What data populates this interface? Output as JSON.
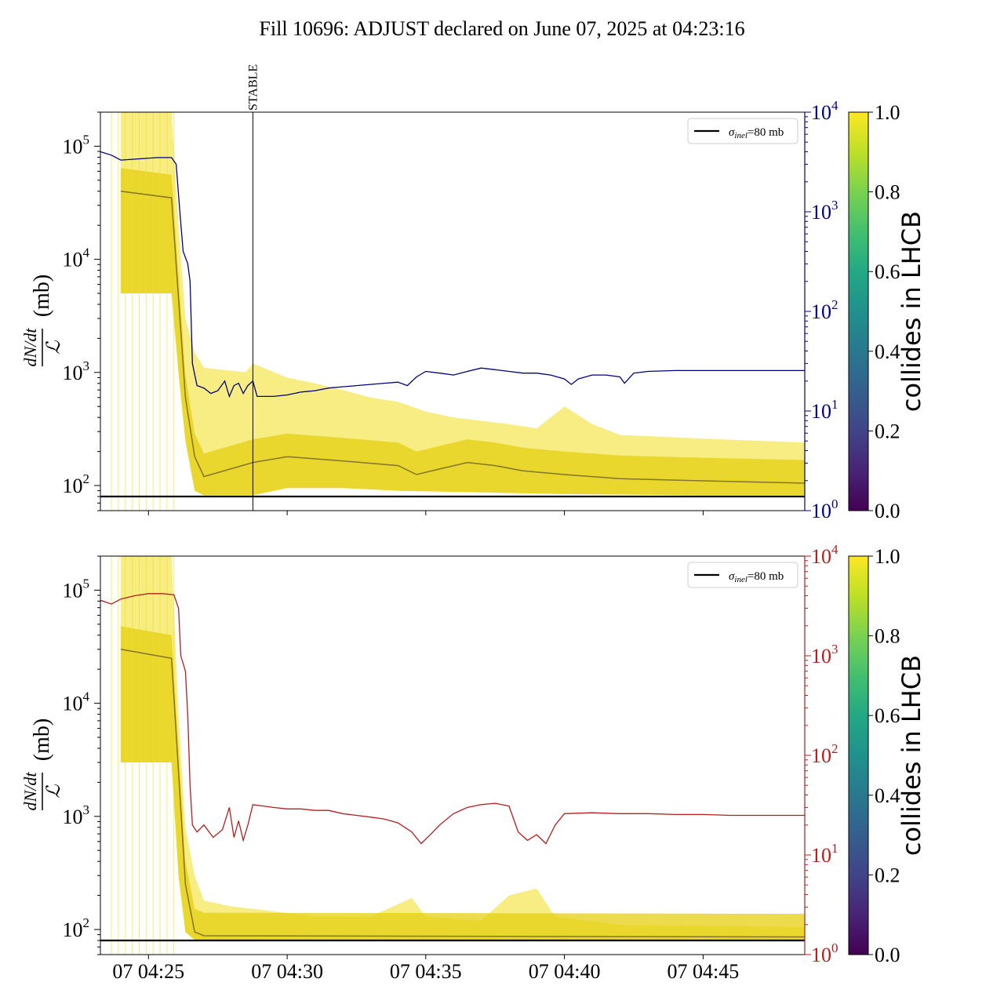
{
  "figure": {
    "title": "Fill 10696: ADJUST declared on June 07, 2025 at 04:23:16"
  },
  "colors": {
    "top_secondary": "#000080",
    "bottom_secondary": "#b21f1f",
    "reference_line": "#000000",
    "bunch_yellow": "#f0de1c",
    "bunch_dark": "#5a4a28"
  },
  "chart_data": [
    {
      "type": "line",
      "panel": "top",
      "ylabel_fraction_num": "dN/dt",
      "ylabel_fraction_den": "ℒ",
      "ylabel_unit": "(mb)",
      "y_scale": "log",
      "ylim": [
        60,
        200000
      ],
      "y_ticks": [
        {
          "value": 100,
          "label": "10",
          "exp": "2"
        },
        {
          "value": 1000,
          "label": "10",
          "exp": "3"
        },
        {
          "value": 10000,
          "label": "10",
          "exp": "4"
        },
        {
          "value": 100000,
          "label": "10",
          "exp": "5"
        }
      ],
      "xlim": [
        "04:23:16",
        "04:48:40"
      ],
      "annotation": {
        "label": "STABLE",
        "x": "04:28:46"
      },
      "legend": {
        "position": "top-right",
        "entries": [
          {
            "sym": "σ",
            "sub": "inel",
            "text": "=80 mb"
          }
        ]
      },
      "reference_line": {
        "value": 80
      },
      "secondary_axis": {
        "scale": "log",
        "ylim": [
          1,
          10000
        ],
        "ticks": [
          {
            "value": 1,
            "label": "10",
            "exp": "0"
          },
          {
            "value": 10,
            "label": "10",
            "exp": "1"
          },
          {
            "value": 100,
            "label": "10",
            "exp": "2"
          },
          {
            "value": 1000,
            "label": "10",
            "exp": "3"
          },
          {
            "value": 10000,
            "label": "10",
            "exp": "4"
          }
        ],
        "series": [
          [
            "04:23:16",
            4000
          ],
          [
            "04:23:40",
            3700
          ],
          [
            "04:24:00",
            3300
          ],
          [
            "04:24:40",
            3400
          ],
          [
            "04:25:20",
            3500
          ],
          [
            "04:25:50",
            3500
          ],
          [
            "04:26:00",
            3000
          ],
          [
            "04:26:08",
            1000
          ],
          [
            "04:26:15",
            400
          ],
          [
            "04:26:25",
            300
          ],
          [
            "04:26:30",
            200
          ],
          [
            "04:26:35",
            30
          ],
          [
            "04:26:45",
            18
          ],
          [
            "04:27:00",
            17
          ],
          [
            "04:27:15",
            15
          ],
          [
            "04:27:30",
            16
          ],
          [
            "04:27:45",
            20
          ],
          [
            "04:27:55",
            14
          ],
          [
            "04:28:05",
            18
          ],
          [
            "04:28:15",
            19
          ],
          [
            "04:28:25",
            15
          ],
          [
            "04:28:35",
            18
          ],
          [
            "04:28:46",
            20
          ],
          [
            "04:28:55",
            14
          ],
          [
            "04:29:30",
            14
          ],
          [
            "04:30:00",
            14.5
          ],
          [
            "04:30:30",
            15.5
          ],
          [
            "04:31:00",
            16
          ],
          [
            "04:31:30",
            17
          ],
          [
            "04:32:00",
            17.5
          ],
          [
            "04:32:30",
            18
          ],
          [
            "04:33:00",
            18.5
          ],
          [
            "04:33:30",
            19
          ],
          [
            "04:34:00",
            19.5
          ],
          [
            "04:34:20",
            18
          ],
          [
            "04:34:40",
            22
          ],
          [
            "04:35:00",
            25
          ],
          [
            "04:35:30",
            24
          ],
          [
            "04:36:00",
            23
          ],
          [
            "04:36:30",
            25
          ],
          [
            "04:37:00",
            27
          ],
          [
            "04:37:30",
            26
          ],
          [
            "04:38:00",
            25
          ],
          [
            "04:38:30",
            24
          ],
          [
            "04:39:00",
            24
          ],
          [
            "04:39:30",
            23
          ],
          [
            "04:40:00",
            21
          ],
          [
            "04:40:15",
            18.5
          ],
          [
            "04:40:30",
            21
          ],
          [
            "04:41:00",
            23
          ],
          [
            "04:41:30",
            23
          ],
          [
            "04:42:00",
            22
          ],
          [
            "04:42:10",
            19
          ],
          [
            "04:42:30",
            24
          ],
          [
            "04:43:00",
            25
          ],
          [
            "04:44:00",
            25.5
          ],
          [
            "04:45:00",
            25.5
          ],
          [
            "04:46:00",
            25.5
          ],
          [
            "04:47:00",
            25.5
          ],
          [
            "04:48:00",
            25.5
          ],
          [
            "04:48:40",
            25.5
          ]
        ]
      },
      "bunch_band": {
        "upper": [
          [
            "04:24:00",
            200000
          ],
          [
            "04:25:50",
            200000
          ],
          [
            "04:26:05",
            20000
          ],
          [
            "04:26:20",
            3000
          ],
          [
            "04:26:40",
            1500
          ],
          [
            "04:27:00",
            1100
          ],
          [
            "04:28:30",
            1000
          ],
          [
            "04:28:46",
            1200
          ],
          [
            "04:30:00",
            900
          ],
          [
            "04:31:00",
            800
          ],
          [
            "04:32:00",
            700
          ],
          [
            "04:33:00",
            600
          ],
          [
            "04:34:00",
            550
          ],
          [
            "04:35:00",
            450
          ],
          [
            "04:36:00",
            400
          ],
          [
            "04:38:00",
            350
          ],
          [
            "04:39:00",
            320
          ],
          [
            "04:40:00",
            500
          ],
          [
            "04:41:00",
            350
          ],
          [
            "04:42:00",
            280
          ],
          [
            "04:45:00",
            260
          ],
          [
            "04:48:40",
            240
          ]
        ],
        "lower": [
          [
            "04:24:00",
            5000
          ],
          [
            "04:25:50",
            5000
          ],
          [
            "04:26:05",
            1000
          ],
          [
            "04:26:20",
            250
          ],
          [
            "04:26:40",
            90
          ],
          [
            "04:27:00",
            82
          ],
          [
            "04:28:46",
            82
          ],
          [
            "04:30:00",
            95
          ],
          [
            "04:32:00",
            95
          ],
          [
            "04:34:00",
            90
          ],
          [
            "04:36:00",
            88
          ],
          [
            "04:38:00",
            86
          ],
          [
            "04:40:00",
            84
          ],
          [
            "04:45:00",
            82
          ],
          [
            "04:48:40",
            82
          ]
        ],
        "dark_line": [
          [
            "04:24:00",
            40000
          ],
          [
            "04:25:50",
            35000
          ],
          [
            "04:26:20",
            600
          ],
          [
            "04:26:40",
            180
          ],
          [
            "04:27:00",
            120
          ],
          [
            "04:28:46",
            160
          ],
          [
            "04:30:00",
            180
          ],
          [
            "04:32:00",
            165
          ],
          [
            "04:34:00",
            150
          ],
          [
            "04:34:40",
            125
          ],
          [
            "04:35:30",
            140
          ],
          [
            "04:36:30",
            160
          ],
          [
            "04:37:30",
            150
          ],
          [
            "04:38:30",
            135
          ],
          [
            "04:40:00",
            125
          ],
          [
            "04:42:00",
            115
          ],
          [
            "04:45:00",
            110
          ],
          [
            "04:48:40",
            105
          ]
        ]
      }
    },
    {
      "type": "line",
      "panel": "bottom",
      "ylabel_fraction_num": "dN/dt",
      "ylabel_fraction_den": "ℒ",
      "ylabel_unit": "(mb)",
      "y_scale": "log",
      "ylim": [
        60,
        200000
      ],
      "y_ticks": [
        {
          "value": 100,
          "label": "10",
          "exp": "2"
        },
        {
          "value": 1000,
          "label": "10",
          "exp": "3"
        },
        {
          "value": 10000,
          "label": "10",
          "exp": "4"
        },
        {
          "value": 100000,
          "label": "10",
          "exp": "5"
        }
      ],
      "xlim": [
        "04:23:16",
        "04:48:40"
      ],
      "x_ticks": [
        {
          "value": "04:25:00",
          "label": "07 04:25"
        },
        {
          "value": "04:30:00",
          "label": "07 04:30"
        },
        {
          "value": "04:35:00",
          "label": "07 04:35"
        },
        {
          "value": "04:40:00",
          "label": "07 04:40"
        },
        {
          "value": "04:45:00",
          "label": "07 04:45"
        }
      ],
      "legend": {
        "position": "top-right",
        "entries": [
          {
            "sym": "σ",
            "sub": "inel",
            "text": "=80 mb"
          }
        ]
      },
      "reference_line": {
        "value": 80
      },
      "secondary_axis": {
        "scale": "log",
        "ylim": [
          1,
          10000
        ],
        "ticks": [
          {
            "value": 1,
            "label": "10",
            "exp": "0"
          },
          {
            "value": 10,
            "label": "10",
            "exp": "1"
          },
          {
            "value": 100,
            "label": "10",
            "exp": "2"
          },
          {
            "value": 1000,
            "label": "10",
            "exp": "3"
          },
          {
            "value": 10000,
            "label": "10",
            "exp": "4"
          }
        ],
        "series": [
          [
            "04:23:16",
            3600
          ],
          [
            "04:23:40",
            3300
          ],
          [
            "04:24:00",
            3700
          ],
          [
            "04:24:30",
            4000
          ],
          [
            "04:25:00",
            4200
          ],
          [
            "04:25:30",
            4200
          ],
          [
            "04:25:55",
            4100
          ],
          [
            "04:26:05",
            3000
          ],
          [
            "04:26:10",
            1000
          ],
          [
            "04:26:20",
            700
          ],
          [
            "04:26:25",
            250
          ],
          [
            "04:26:30",
            50
          ],
          [
            "04:26:35",
            20
          ],
          [
            "04:26:45",
            17
          ],
          [
            "04:27:00",
            20
          ],
          [
            "04:27:20",
            15
          ],
          [
            "04:27:40",
            18
          ],
          [
            "04:27:55",
            30
          ],
          [
            "04:28:05",
            15
          ],
          [
            "04:28:15",
            22
          ],
          [
            "04:28:25",
            14
          ],
          [
            "04:28:35",
            20
          ],
          [
            "04:28:46",
            32
          ],
          [
            "04:29:30",
            30
          ],
          [
            "04:30:00",
            29
          ],
          [
            "04:30:30",
            29
          ],
          [
            "04:31:00",
            28
          ],
          [
            "04:31:30",
            28
          ],
          [
            "04:32:00",
            26
          ],
          [
            "04:32:30",
            25
          ],
          [
            "04:33:00",
            24
          ],
          [
            "04:33:30",
            23
          ],
          [
            "04:34:00",
            21
          ],
          [
            "04:34:30",
            17
          ],
          [
            "04:34:50",
            13
          ],
          [
            "04:35:10",
            16
          ],
          [
            "04:35:30",
            20
          ],
          [
            "04:36:00",
            26
          ],
          [
            "04:36:30",
            30
          ],
          [
            "04:37:00",
            32
          ],
          [
            "04:37:30",
            33
          ],
          [
            "04:38:00",
            31
          ],
          [
            "04:38:20",
            17
          ],
          [
            "04:38:40",
            14
          ],
          [
            "04:39:00",
            16
          ],
          [
            "04:39:20",
            13
          ],
          [
            "04:39:40",
            20
          ],
          [
            "04:40:00",
            26
          ],
          [
            "04:41:00",
            26.5
          ],
          [
            "04:42:00",
            26
          ],
          [
            "04:43:00",
            26
          ],
          [
            "04:44:00",
            25.5
          ],
          [
            "04:45:00",
            25.5
          ],
          [
            "04:46:00",
            25
          ],
          [
            "04:47:00",
            25
          ],
          [
            "04:48:00",
            25
          ],
          [
            "04:48:40",
            25
          ]
        ]
      },
      "bunch_band": {
        "upper": [
          [
            "04:24:00",
            200000
          ],
          [
            "04:25:50",
            200000
          ],
          [
            "04:26:05",
            8000
          ],
          [
            "04:26:20",
            800
          ],
          [
            "04:26:40",
            300
          ],
          [
            "04:27:00",
            180
          ],
          [
            "04:28:00",
            160
          ],
          [
            "04:29:00",
            150
          ],
          [
            "04:31:00",
            130
          ],
          [
            "04:33:00",
            130
          ],
          [
            "04:34:30",
            190
          ],
          [
            "04:35:00",
            130
          ],
          [
            "04:37:00",
            120
          ],
          [
            "04:38:00",
            200
          ],
          [
            "04:39:00",
            230
          ],
          [
            "04:39:40",
            130
          ],
          [
            "04:42:00",
            110
          ],
          [
            "04:48:40",
            105
          ]
        ],
        "lower": [
          [
            "04:24:00",
            3000
          ],
          [
            "04:25:50",
            3000
          ],
          [
            "04:26:05",
            300
          ],
          [
            "04:26:20",
            95
          ],
          [
            "04:26:40",
            81
          ],
          [
            "04:48:40",
            81
          ]
        ],
        "dark_line": [
          [
            "04:24:00",
            30000
          ],
          [
            "04:25:50",
            25000
          ],
          [
            "04:26:20",
            250
          ],
          [
            "04:26:40",
            95
          ],
          [
            "04:27:00",
            88
          ],
          [
            "04:48:40",
            86
          ]
        ]
      }
    }
  ],
  "colorbar": {
    "label": "collides in LHCB",
    "colormap": "viridis",
    "range": [
      0.0,
      1.0
    ],
    "ticks": [
      "0.0",
      "0.2",
      "0.4",
      "0.6",
      "0.8",
      "1.0"
    ]
  }
}
